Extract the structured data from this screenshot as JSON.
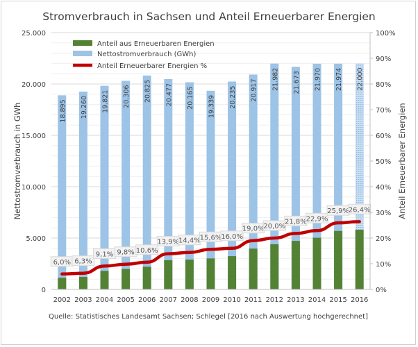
{
  "chart_data": {
    "type": "bar",
    "title": "Stromverbrauch in Sachsen und Anteil Erneuerbarer Energien",
    "ylabel": "Nettostromverbrauch in GWh",
    "y2label": "Anteil Erneuerbarer Energien",
    "source": "Quelle: Statistisches Landesamt Sachsen; Schlegel [2016 nach Auswertung hochgerechnet]",
    "ylim": [
      0,
      25000
    ],
    "y2lim": [
      0,
      100
    ],
    "yticks": [
      "0",
      "5.000",
      "10.000",
      "15.000",
      "20.000",
      "25.000"
    ],
    "y2ticks": [
      "0%",
      "10%",
      "20%",
      "30%",
      "40%",
      "50%",
      "60%",
      "70%",
      "80%",
      "90%",
      "100%"
    ],
    "grid": true,
    "legend_position": "top-left",
    "categories": [
      "2002",
      "2003",
      "2004",
      "2005",
      "2006",
      "2007",
      "2008",
      "2009",
      "2010",
      "2011",
      "2012",
      "2013",
      "2014",
      "2015",
      "2016"
    ],
    "series": [
      {
        "name": "Anteil aus Erneuerbaren Energien",
        "type": "bar",
        "color": "#548235",
        "values": [
          1134,
          1213,
          1804,
          1990,
          2207,
          2846,
          2904,
          3017,
          3238,
          3974,
          4396,
          4725,
          5031,
          5691,
          5808
        ]
      },
      {
        "name": "Nettostromverbrauch (GWh)",
        "type": "bar",
        "color": "#9dc3e6",
        "values": [
          18895,
          19260,
          19821,
          20306,
          20825,
          20477,
          20165,
          19339,
          20235,
          20917,
          21982,
          21673,
          21970,
          21974,
          22000
        ],
        "labels": [
          "18.895",
          "19.260",
          "19.821",
          "20.306",
          "20.825",
          "20.477",
          "20.165",
          "19.339",
          "20.235",
          "20.917",
          "21.982",
          "21.673",
          "21.970",
          "21.974",
          "22.000"
        ],
        "estimated_last": true
      },
      {
        "name": "Anteil Erneuerbarer Energien %",
        "type": "line",
        "axis": "right",
        "color": "#c00000",
        "values": [
          6.0,
          6.3,
          9.1,
          9.8,
          10.6,
          13.9,
          14.4,
          15.6,
          16.0,
          19.0,
          20.0,
          21.8,
          22.9,
          25.9,
          26.4
        ],
        "labels": [
          "6,0%",
          "6,3%",
          "9,1%",
          "9,8%",
          "10,6%",
          "13,9%",
          "14,4%",
          "15,6%",
          "16,0%",
          "19,0%",
          "20,0%",
          "21,8%",
          "22,9%",
          "25,9%",
          "26,4%"
        ]
      }
    ]
  }
}
